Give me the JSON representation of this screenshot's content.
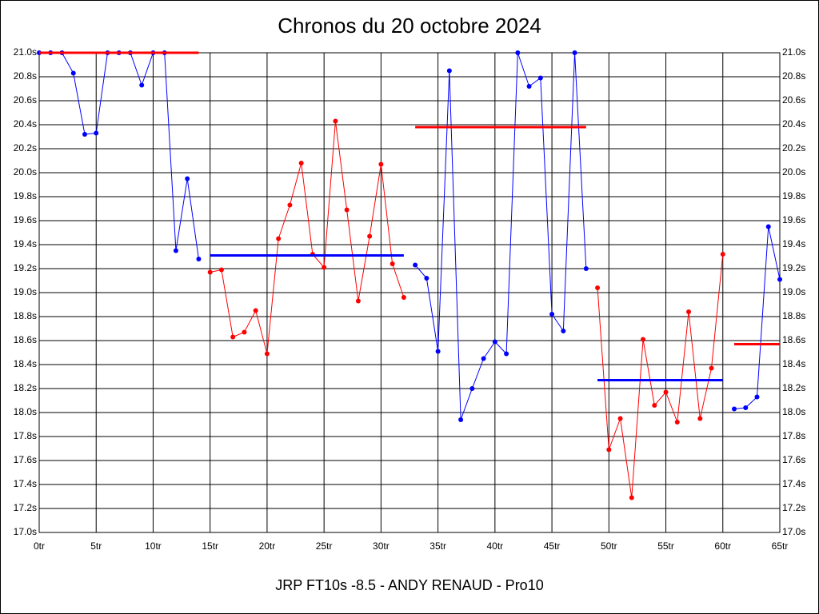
{
  "chart_data": {
    "type": "line",
    "title": "Chronos du 20 octobre 2024",
    "x_label": "JRP FT10s -8.5 - ANDY RENAUD - Pro10",
    "xlim": [
      0,
      65
    ],
    "ylim": [
      17.0,
      21.0
    ],
    "grid": true,
    "xticks": [
      {
        "value": 0,
        "label": "0tr"
      },
      {
        "value": 5,
        "label": "5tr"
      },
      {
        "value": 10,
        "label": "10tr"
      },
      {
        "value": 15,
        "label": "15tr"
      },
      {
        "value": 20,
        "label": "20tr"
      },
      {
        "value": 25,
        "label": "25tr"
      },
      {
        "value": 30,
        "label": "30tr"
      },
      {
        "value": 35,
        "label": "35tr"
      },
      {
        "value": 40,
        "label": "40tr"
      },
      {
        "value": 45,
        "label": "45tr"
      },
      {
        "value": 50,
        "label": "50tr"
      },
      {
        "value": 55,
        "label": "55tr"
      },
      {
        "value": 60,
        "label": "60tr"
      },
      {
        "value": 65,
        "label": "65tr"
      }
    ],
    "yticks": [
      {
        "value": 17.0,
        "label": "17.0s"
      },
      {
        "value": 17.2,
        "label": "17.2s"
      },
      {
        "value": 17.4,
        "label": "17.4s"
      },
      {
        "value": 17.6,
        "label": "17.6s"
      },
      {
        "value": 17.8,
        "label": "17.8s"
      },
      {
        "value": 18.0,
        "label": "18.0s"
      },
      {
        "value": 18.2,
        "label": "18.2s"
      },
      {
        "value": 18.4,
        "label": "18.4s"
      },
      {
        "value": 18.6,
        "label": "18.6s"
      },
      {
        "value": 18.8,
        "label": "18.8s"
      },
      {
        "value": 19.0,
        "label": "19.0s"
      },
      {
        "value": 19.2,
        "label": "19.2s"
      },
      {
        "value": 19.4,
        "label": "19.4s"
      },
      {
        "value": 19.6,
        "label": "19.6s"
      },
      {
        "value": 19.8,
        "label": "19.8s"
      },
      {
        "value": 20.0,
        "label": "20.0s"
      },
      {
        "value": 20.2,
        "label": "20.2s"
      },
      {
        "value": 20.4,
        "label": "20.4s"
      },
      {
        "value": 20.6,
        "label": "20.6s"
      },
      {
        "value": 20.8,
        "label": "20.8s"
      },
      {
        "value": 21.0,
        "label": "21.0s"
      }
    ],
    "series": [
      {
        "color": "#0000ff",
        "x": [
          0,
          1,
          2,
          3,
          4,
          5,
          6,
          7,
          8,
          9,
          10,
          11,
          12,
          13,
          14
        ],
        "values": [
          21.0,
          21.0,
          21.0,
          20.83,
          20.32,
          20.33,
          21.0,
          21.0,
          21.0,
          20.73,
          21.0,
          21.0,
          19.35,
          19.95,
          19.28
        ]
      },
      {
        "color": "#ff0000",
        "x": [
          15,
          16,
          17,
          18,
          19,
          20,
          21,
          22,
          23,
          24,
          25,
          26,
          27,
          28,
          29,
          30,
          31,
          32
        ],
        "values": [
          19.17,
          19.19,
          18.63,
          18.67,
          18.85,
          18.49,
          19.45,
          19.73,
          20.08,
          19.32,
          19.21,
          20.43,
          19.69,
          18.93,
          19.47,
          20.07,
          19.24,
          18.96
        ]
      },
      {
        "color": "#0000ff",
        "x": [
          33,
          34,
          35,
          36,
          37,
          38,
          39,
          40,
          41,
          42,
          43,
          44,
          45,
          46,
          47,
          48
        ],
        "values": [
          19.23,
          19.12,
          18.51,
          20.85,
          17.94,
          18.2,
          18.45,
          18.59,
          18.49,
          21.0,
          20.72,
          20.79,
          18.82,
          18.68,
          21.0,
          19.2
        ]
      },
      {
        "color": "#ff0000",
        "x": [
          49,
          50,
          51,
          52,
          53,
          54,
          55,
          56,
          57,
          58,
          59,
          60
        ],
        "values": [
          19.04,
          17.69,
          17.95,
          17.29,
          18.61,
          18.06,
          18.17,
          17.92,
          18.84,
          17.95,
          18.37,
          19.32
        ]
      },
      {
        "color": "#0000ff",
        "x": [
          61,
          62,
          63,
          64,
          65
        ],
        "values": [
          18.03,
          18.04,
          18.13,
          19.55,
          19.11
        ]
      }
    ],
    "average_lines": [
      {
        "color": "#ff0000",
        "x": [
          0,
          14
        ],
        "value": 21.0
      },
      {
        "color": "#0000ff",
        "x": [
          15,
          32
        ],
        "value": 19.31
      },
      {
        "color": "#ff0000",
        "x": [
          33,
          48
        ],
        "value": 20.38
      },
      {
        "color": "#0000ff",
        "x": [
          49,
          60
        ],
        "value": 18.27
      },
      {
        "color": "#ff0000",
        "x": [
          61,
          65
        ],
        "value": 18.57
      }
    ]
  }
}
